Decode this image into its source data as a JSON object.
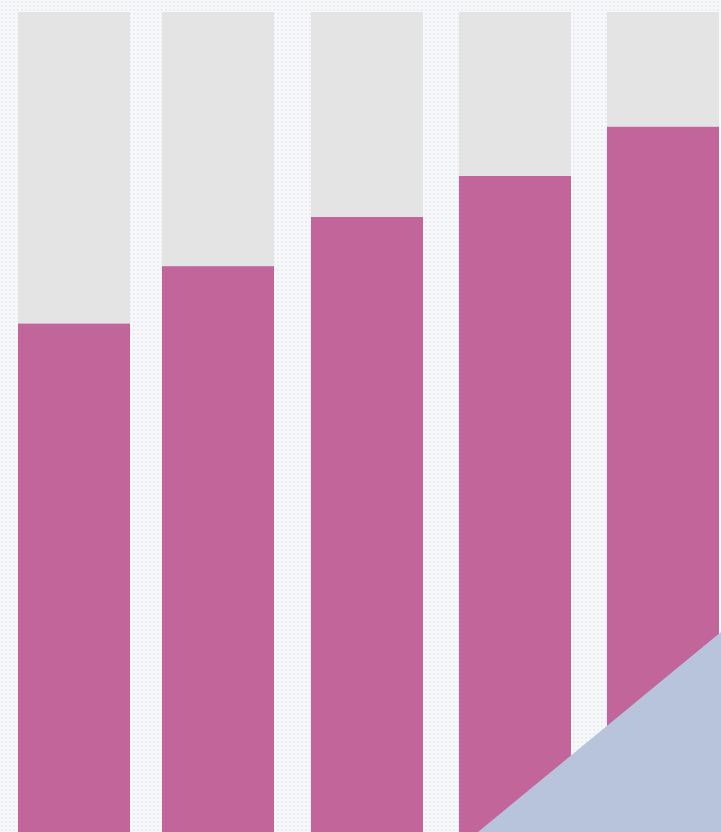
{
  "chart_data": {
    "type": "bar",
    "orientation": "vertical",
    "stacked_background": true,
    "title": "",
    "xlabel": "",
    "ylabel": "",
    "categories": [
      "",
      "",
      "",
      "",
      ""
    ],
    "series": [
      {
        "values": [
          0.62,
          0.69,
          0.75,
          0.8,
          0.86
        ]
      }
    ],
    "ylim": [
      0,
      1
    ],
    "grid": false,
    "legend": "none",
    "background_track": true,
    "overlay_shape": "triangle-bottom-right"
  },
  "colors": {
    "bar_fill": "#c2659b",
    "track_fill": "#e4e4e5",
    "overlay_fill": "#b8c4dc",
    "page_background": "#f7f8fa"
  }
}
